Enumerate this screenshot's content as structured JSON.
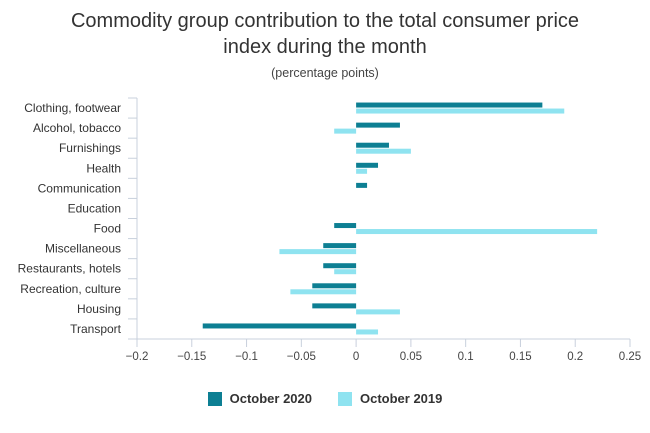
{
  "chart_data": {
    "type": "bar",
    "orientation": "horizontal",
    "title": "Commodity group contribution to the total consumer price\nindex during the month",
    "subtitle": "(percentage points)",
    "categories": [
      "Clothing, footwear",
      "Alcohol, tobacco",
      "Furnishings",
      "Health",
      "Communication",
      "Education",
      "Food",
      "Miscellaneous",
      "Restaurants, hotels",
      "Recreation, culture",
      "Housing",
      "Transport"
    ],
    "series": [
      {
        "name": "October 2020",
        "color": "#0d7f93",
        "values": [
          0.17,
          0.04,
          0.03,
          0.02,
          0.01,
          0.0,
          -0.02,
          -0.03,
          -0.03,
          -0.04,
          -0.04,
          -0.14
        ]
      },
      {
        "name": "October 2019",
        "color": "#8fe3f0",
        "values": [
          0.19,
          -0.02,
          0.05,
          0.01,
          0.0,
          0.0,
          0.22,
          -0.07,
          -0.02,
          -0.06,
          0.04,
          0.02
        ]
      }
    ],
    "xlim": [
      -0.2,
      0.25
    ],
    "xticks": [
      -0.2,
      -0.15,
      -0.1,
      -0.05,
      0,
      0.05,
      0.1,
      0.15,
      0.2,
      0.25
    ],
    "xtick_labels": [
      "−0.2",
      "−0.15",
      "−0.1",
      "−0.05",
      "0",
      "0.05",
      "0.1",
      "0.15",
      "0.2",
      "0.25"
    ],
    "grid": false,
    "legend_position": "bottom"
  }
}
